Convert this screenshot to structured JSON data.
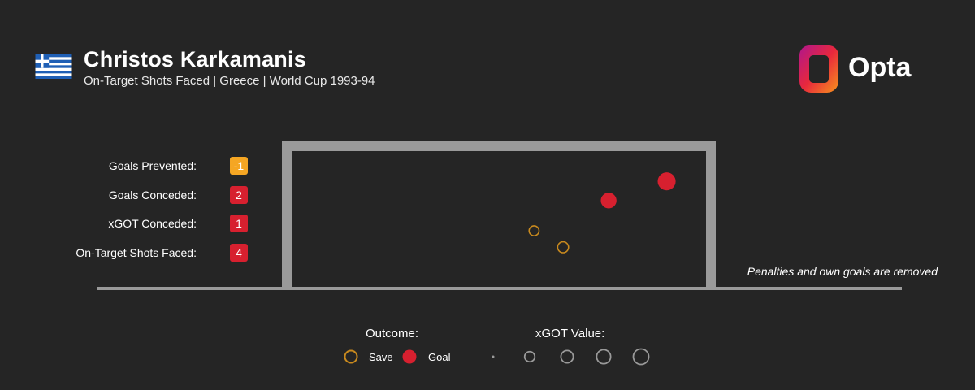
{
  "header": {
    "player_name": "Christos Karkamanis",
    "subtitle": "On-Target Shots Faced | Greece | World Cup 1993-94",
    "flag_icon": "greece-flag-icon",
    "brand": "Opta"
  },
  "stats": [
    {
      "label": "Goals Prevented:",
      "value": "-1",
      "color": "#f5a623"
    },
    {
      "label": "Goals Conceded:",
      "value": "2",
      "color": "#d7202f"
    },
    {
      "label": "xGOT Conceded:",
      "value": "1",
      "color": "#d7202f"
    },
    {
      "label": "On-Target Shots Faced:",
      "value": "4",
      "color": "#d7202f"
    }
  ],
  "note": "Penalties and own goals are removed",
  "legend": {
    "outcome_title": "Outcome:",
    "save_label": "Save",
    "goal_label": "Goal",
    "xgot_title": "xGOT Value:"
  },
  "colors": {
    "save": "#c98a1e",
    "goal": "#d7202f",
    "goal_frame": "#9a9a9a",
    "background": "#252525"
  },
  "chart_data": {
    "type": "scatter",
    "x_range": [
      0,
      1
    ],
    "y_range": [
      0,
      1
    ],
    "shots": [
      {
        "x": 0.905,
        "y": 0.78,
        "outcome": "Goal",
        "xgot": 0.8
      },
      {
        "x": 0.765,
        "y": 0.64,
        "outcome": "Goal",
        "xgot": 0.55
      },
      {
        "x": 0.585,
        "y": 0.42,
        "outcome": "Save",
        "xgot": 0.12
      },
      {
        "x": 0.655,
        "y": 0.3,
        "outcome": "Save",
        "xgot": 0.17
      }
    ],
    "xgot_scale": [
      0.05,
      0.25,
      0.5,
      0.75,
      1.0
    ]
  }
}
